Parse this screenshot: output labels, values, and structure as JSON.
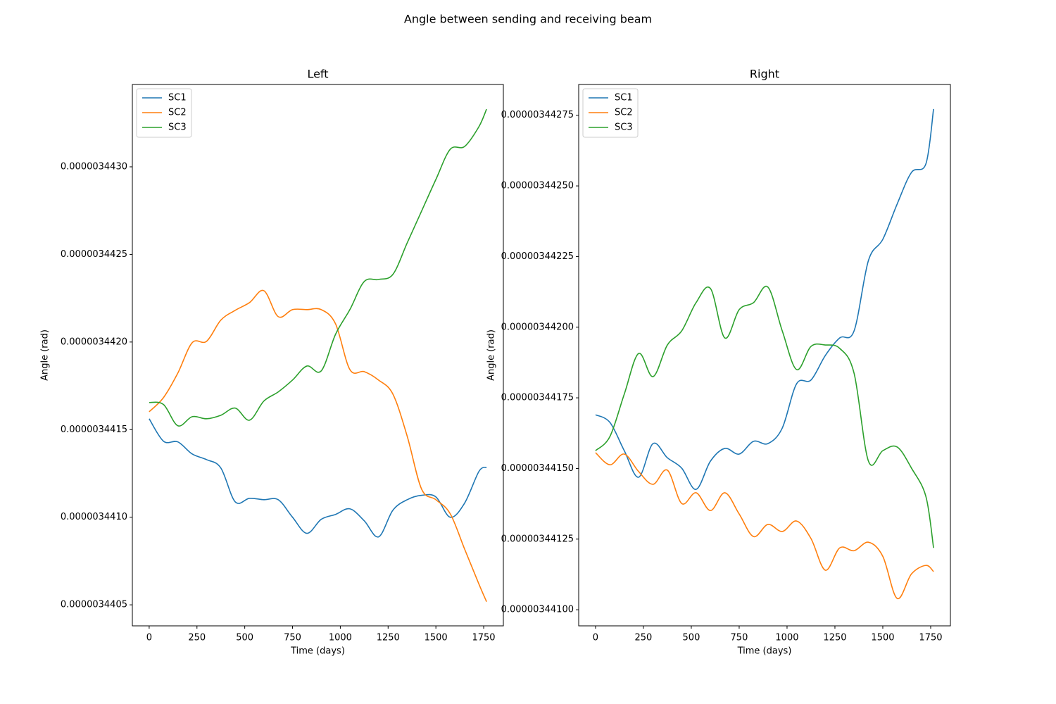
{
  "title": "Angle between sending and receiving beam",
  "chart_data": [
    {
      "type": "line",
      "title": "Left",
      "x_label": "Time (days)",
      "y_label": "Angle (rad)",
      "x": [
        0,
        75,
        150,
        225,
        300,
        375,
        450,
        525,
        600,
        675,
        750,
        825,
        900,
        975,
        1050,
        1125,
        1200,
        1275,
        1350,
        1425,
        1500,
        1575,
        1650,
        1725,
        1765
      ],
      "series": [
        {
          "name": "SC1",
          "color": "#1f77b4",
          "values": [
            3.441562e-06,
            3.441434e-06,
            3.44143e-06,
            3.441361e-06,
            3.441329e-06,
            3.441281e-06,
            3.441088e-06,
            3.441108e-06,
            3.4411e-06,
            3.4411e-06,
            3.441e-06,
            3.440908e-06,
            3.440988e-06,
            3.441016e-06,
            3.441048e-06,
            3.44098e-06,
            3.440888e-06,
            3.44104e-06,
            3.4411e-06,
            3.441125e-06,
            3.441116e-06,
            3.441e-06,
            3.44108e-06,
            3.441261e-06,
            3.441285e-06
          ]
        },
        {
          "name": "SC2",
          "color": "#ff7f0e",
          "values": [
            3.441602e-06,
            3.441683e-06,
            3.441823e-06,
            3.441996e-06,
            3.442004e-06,
            3.442125e-06,
            3.442181e-06,
            3.442225e-06,
            3.442293e-06,
            3.442145e-06,
            3.442185e-06,
            3.442185e-06,
            3.442185e-06,
            3.442104e-06,
            3.441843e-06,
            3.441831e-06,
            3.441783e-06,
            3.441703e-06,
            3.441462e-06,
            3.441161e-06,
            3.4411e-06,
            3.44102e-06,
            3.440819e-06,
            3.440619e-06,
            3.440518e-06
          ]
        },
        {
          "name": "SC3",
          "color": "#2ca02c",
          "values": [
            3.441655e-06,
            3.441643e-06,
            3.441522e-06,
            3.441574e-06,
            3.441562e-06,
            3.441582e-06,
            3.441623e-06,
            3.441554e-06,
            3.441663e-06,
            3.441715e-06,
            3.441783e-06,
            3.441863e-06,
            3.441835e-06,
            3.442044e-06,
            3.442185e-06,
            3.442345e-06,
            3.442357e-06,
            3.442386e-06,
            3.442566e-06,
            3.442747e-06,
            3.442928e-06,
            3.4431e-06,
            3.443116e-06,
            3.443229e-06,
            3.443329e-06
          ]
        }
      ],
      "xlim": [
        -88,
        1853
      ],
      "ylim": [
        3.44038e-06,
        3.44347e-06
      ],
      "xticks": [
        0,
        250,
        500,
        750,
        1000,
        1250,
        1500,
        1750
      ],
      "yticks": [
        {
          "value": 3.4405e-06,
          "label": "0.0000034405"
        },
        {
          "value": 3.441e-06,
          "label": "0.0000034410"
        },
        {
          "value": 3.4415e-06,
          "label": "0.0000034415"
        },
        {
          "value": 3.442e-06,
          "label": "0.0000034420"
        },
        {
          "value": 3.4425e-06,
          "label": "0.0000034425"
        },
        {
          "value": 3.443e-06,
          "label": "0.0000034430"
        }
      ],
      "legend": "upper left"
    },
    {
      "type": "line",
      "title": "Right",
      "x_label": "Time (days)",
      "y_label": "Angle (rad)",
      "x": [
        0,
        75,
        150,
        225,
        300,
        375,
        450,
        525,
        600,
        675,
        750,
        825,
        900,
        975,
        1050,
        1125,
        1200,
        1275,
        1350,
        1425,
        1500,
        1575,
        1650,
        1725,
        1765
      ],
      "series": [
        {
          "name": "SC1",
          "color": "#1f77b4",
          "values": [
            3.44169e-06,
            3.441663e-06,
            3.441563e-06,
            3.441469e-06,
            3.441588e-06,
            3.441538e-06,
            3.441501e-06,
            3.441426e-06,
            3.441526e-06,
            3.441571e-06,
            3.441551e-06,
            3.441596e-06,
            3.441588e-06,
            3.441643e-06,
            3.4418e-06,
            3.441813e-06,
            3.4419e-06,
            3.441962e-06,
            3.441987e-06,
            3.442236e-06,
            3.442311e-06,
            3.442436e-06,
            3.442548e-06,
            3.442578e-06,
            3.442772e-06
          ]
        },
        {
          "name": "SC2",
          "color": "#ff7f0e",
          "values": [
            3.441556e-06,
            3.441513e-06,
            3.441551e-06,
            3.441489e-06,
            3.441444e-06,
            3.441494e-06,
            3.441376e-06,
            3.441414e-06,
            3.441351e-06,
            3.441414e-06,
            3.441339e-06,
            3.441259e-06,
            3.441302e-06,
            3.441277e-06,
            3.441314e-06,
            3.441252e-06,
            3.44114e-06,
            3.441219e-06,
            3.441209e-06,
            3.441239e-06,
            3.441189e-06,
            3.44104e-06,
            3.441127e-06,
            3.441157e-06,
            3.441135e-06
          ]
        },
        {
          "name": "SC3",
          "color": "#2ca02c",
          "values": [
            3.441563e-06,
            3.441613e-06,
            3.441763e-06,
            3.441907e-06,
            3.441825e-06,
            3.441937e-06,
            3.441987e-06,
            3.442087e-06,
            3.442137e-06,
            3.441962e-06,
            3.442062e-06,
            3.442087e-06,
            3.442142e-06,
            3.441987e-06,
            3.44185e-06,
            3.441932e-06,
            3.441937e-06,
            3.441925e-06,
            3.441837e-06,
            3.441526e-06,
            3.441563e-06,
            3.441576e-06,
            3.441501e-06,
            3.441401e-06,
            3.441219e-06
          ]
        }
      ],
      "xlim": [
        -88,
        1853
      ],
      "ylim": [
        3.440943e-06,
        3.442859e-06
      ],
      "xticks": [
        0,
        250,
        500,
        750,
        1000,
        1250,
        1500,
        1750
      ],
      "yticks": [
        {
          "value": 3.441e-06,
          "label": "0.00000344100"
        },
        {
          "value": 3.44125e-06,
          "label": "0.00000344125"
        },
        {
          "value": 3.4415e-06,
          "label": "0.00000344150"
        },
        {
          "value": 3.44175e-06,
          "label": "0.00000344175"
        },
        {
          "value": 3.442e-06,
          "label": "0.00000344200"
        },
        {
          "value": 3.44225e-06,
          "label": "0.00000344225"
        },
        {
          "value": 3.4425e-06,
          "label": "0.00000344250"
        },
        {
          "value": 3.44275e-06,
          "label": "0.00000344275"
        }
      ],
      "legend": "upper left"
    }
  ]
}
